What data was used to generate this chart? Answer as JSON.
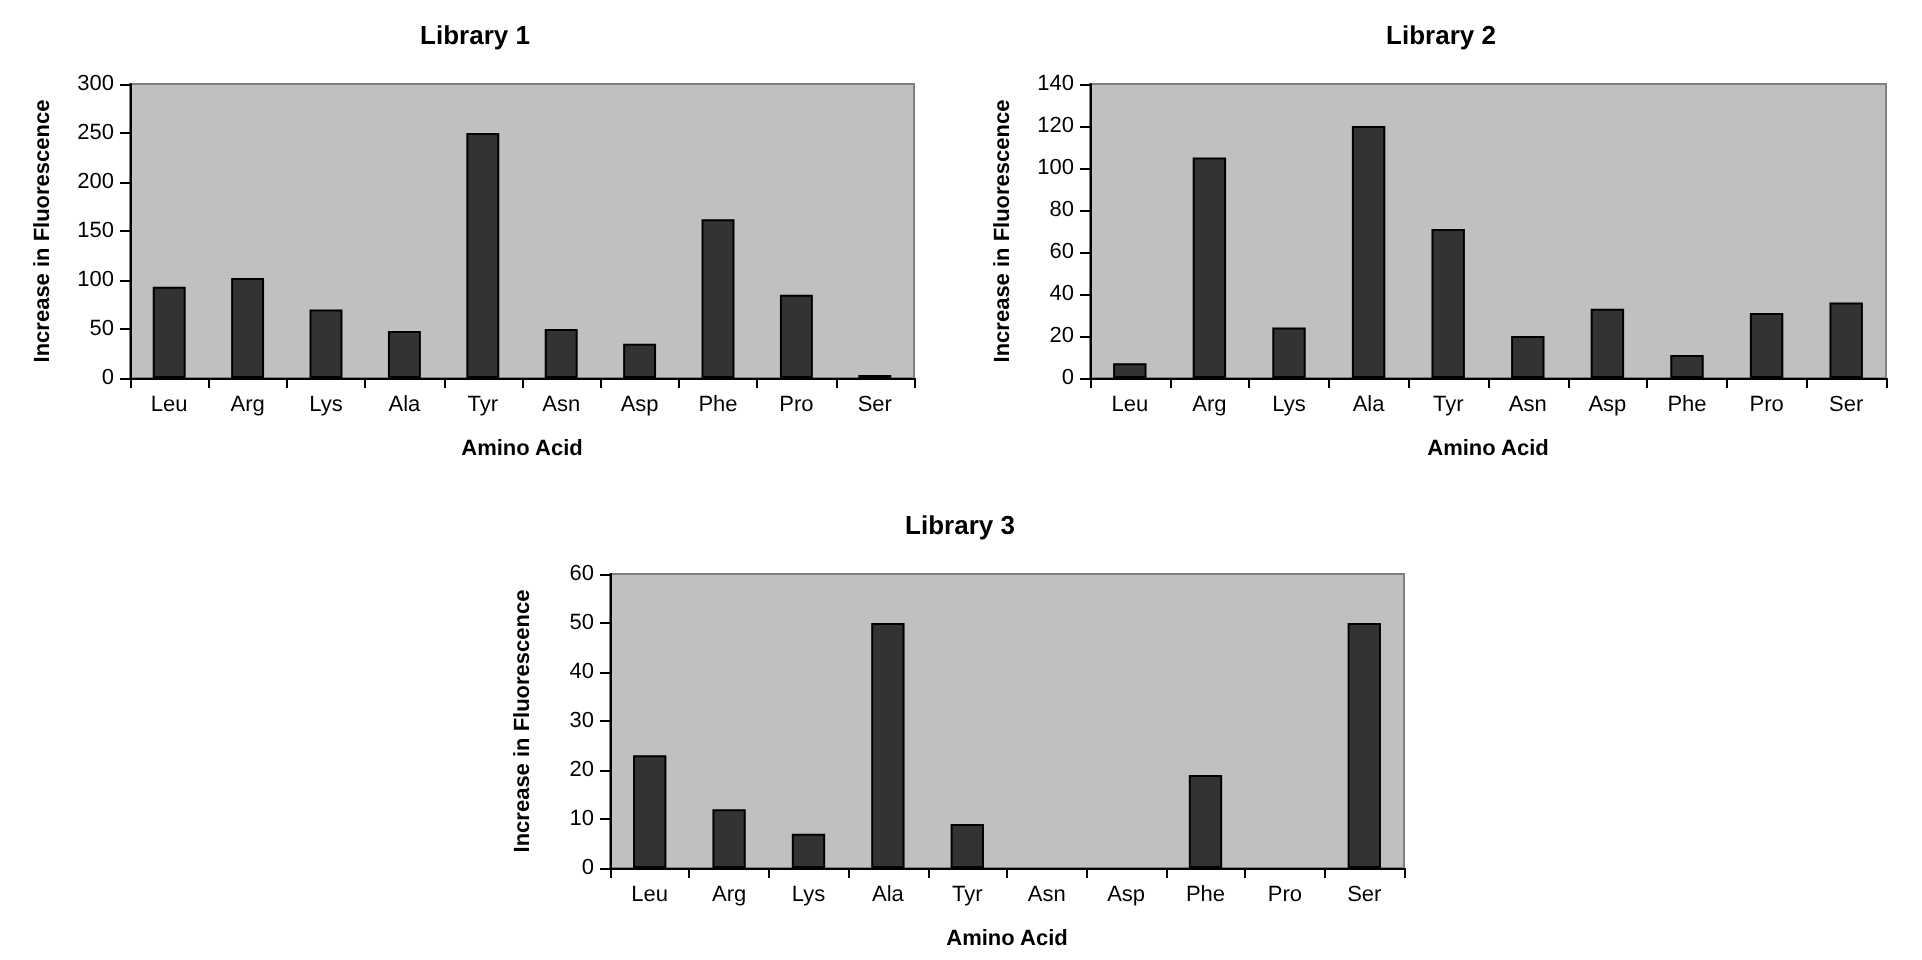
{
  "chart_data": [
    {
      "type": "bar",
      "title": "Library 1",
      "xlabel": "Amino Acid",
      "ylabel": "Increase in Fluorescence",
      "categories": [
        "Leu",
        "Arg",
        "Lys",
        "Ala",
        "Tyr",
        "Asn",
        "Asp",
        "Phe",
        "Pro",
        "Ser"
      ],
      "values": [
        93,
        102,
        70,
        48,
        250,
        50,
        35,
        162,
        85,
        3
      ],
      "color": "#333333",
      "ylim": [
        0,
        300
      ],
      "yticks": [
        0,
        50,
        100,
        150,
        200,
        250,
        300
      ],
      "grid": false
    },
    {
      "type": "bar",
      "title": "Library 2",
      "xlabel": "Amino Acid",
      "ylabel": "Increase in Fluorescence",
      "categories": [
        "Leu",
        "Arg",
        "Lys",
        "Ala",
        "Tyr",
        "Asn",
        "Asp",
        "Phe",
        "Pro",
        "Ser"
      ],
      "values": [
        7,
        105,
        24,
        120,
        71,
        20,
        33,
        11,
        31,
        36
      ],
      "color": "#333333",
      "ylim": [
        0,
        140
      ],
      "yticks": [
        0,
        20,
        40,
        60,
        80,
        100,
        120,
        140
      ],
      "grid": false
    },
    {
      "type": "bar",
      "title": "Library 3",
      "xlabel": "Amino Acid",
      "ylabel": "Increase in Fluorescence",
      "categories": [
        "Leu",
        "Arg",
        "Lys",
        "Ala",
        "Tyr",
        "Asn",
        "Asp",
        "Phe",
        "Pro",
        "Ser"
      ],
      "values": [
        23,
        12,
        7,
        50,
        9,
        0,
        0,
        19,
        0,
        50
      ],
      "color": "#333333",
      "ylim": [
        0,
        60
      ],
      "yticks": [
        0,
        10,
        20,
        30,
        40,
        50,
        60
      ],
      "grid": false
    }
  ]
}
